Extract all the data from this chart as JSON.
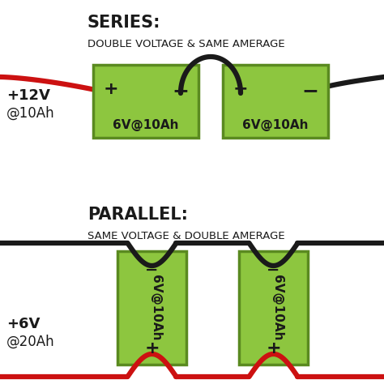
{
  "bg_color": "#ffffff",
  "battery_green": "#8dc63f",
  "battery_border": "#5a8a20",
  "wire_black": "#1a1a1a",
  "wire_red": "#cc1111",
  "text_dark": "#1a1a1a",
  "series_title": "SERIES:",
  "series_sub": "DOUBLE VOLTAGE & SAME AMERAGE",
  "series_label_line1": "+12V",
  "series_label_line2": "@10Ah",
  "parallel_title": "PARALLEL:",
  "parallel_sub": "SAME VOLTAGE & DOUBLE AMERAGE",
  "parallel_label_line1": "+6V",
  "parallel_label_line2": "@20Ah",
  "battery_label": "6V@10Ah"
}
